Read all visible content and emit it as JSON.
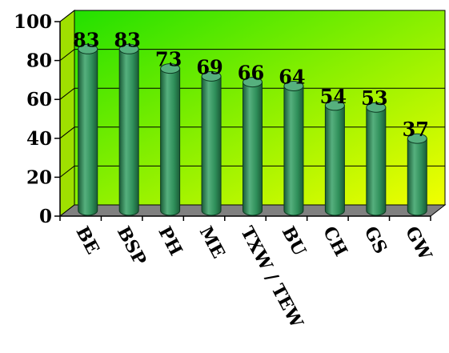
{
  "chart_data": {
    "type": "bar",
    "title": "",
    "xlabel": "",
    "ylabel": "",
    "categories": [
      "BE",
      "BSP",
      "PH",
      "ME",
      "TXW / TEW",
      "BU",
      "CH",
      "GS",
      "GW"
    ],
    "values": [
      83,
      83,
      73,
      69,
      66,
      64,
      54,
      53,
      37
    ],
    "ylim": [
      0,
      100
    ],
    "yticks": [
      "0",
      "20",
      "40",
      "60",
      "80",
      "100"
    ],
    "grid": true,
    "style": "3d-cylinder",
    "colors": {
      "bar": "#2f8f5a",
      "bar_dark": "#1b5c37",
      "bar_light": "#56b07e",
      "wall_top": "#22e000",
      "wall_bottom": "#f2ff00",
      "floor": "#808080",
      "text": "#000000"
    }
  }
}
